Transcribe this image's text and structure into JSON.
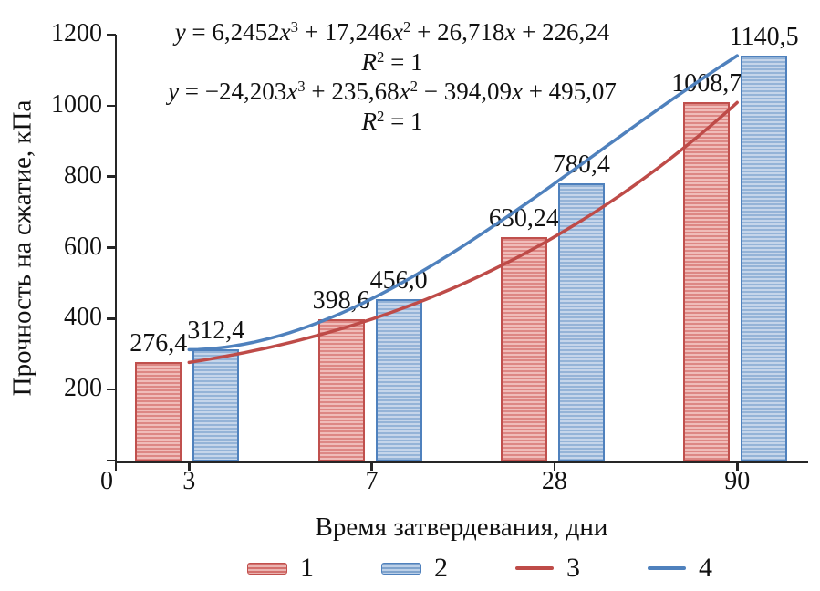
{
  "chart_data": {
    "type": "bar",
    "categories": [
      "3",
      "7",
      "28",
      "90"
    ],
    "x_origin_label": "0",
    "xlabel": "Время затвердевания, дни",
    "ylabel": "Прочность на сжатие, кПа",
    "ylim": [
      0,
      1200
    ],
    "yticks": [
      0,
      200,
      400,
      600,
      800,
      1000,
      1200
    ],
    "grid": false,
    "legend_position": "bottom",
    "axis_color": "#262626",
    "series": [
      {
        "name": "1",
        "type": "bar",
        "color": "#C0504D",
        "fill_light": "#F0BCB9",
        "fill_stripe": "#DD8784",
        "values": [
          276.4,
          398.6,
          630.24,
          1008.7
        ],
        "value_labels": [
          "276,4",
          "398,6",
          "630,24",
          "1008,7"
        ]
      },
      {
        "name": "2",
        "type": "bar",
        "color": "#4F81BD",
        "fill_light": "#C5D5EA",
        "fill_stripe": "#94B3D7",
        "values": [
          312.4,
          456.0,
          780.4,
          1140.5
        ],
        "value_labels": [
          "312,4",
          "456,0",
          "780,4",
          "1140,5"
        ]
      },
      {
        "name": "3",
        "type": "line",
        "color": "#BE4B48",
        "poly_coefficients": [
          6.2452,
          17.246,
          26.718,
          226.24
        ]
      },
      {
        "name": "4",
        "type": "line",
        "color": "#4F81BD",
        "poly_coefficients": [
          -24.203,
          235.68,
          -394.09,
          495.07
        ]
      }
    ],
    "annotations": [
      "y = 6,2452x³ + 17,246x² + 26,718x + 226,24",
      "R² = 1",
      "y = −24,203x³ + 235,68x² − 394,09x + 495,07",
      "R² = 1"
    ]
  }
}
